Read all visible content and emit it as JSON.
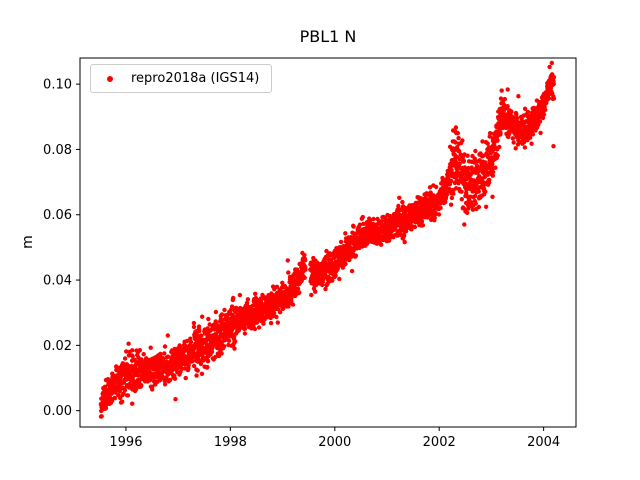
{
  "title": "PBL1 N",
  "legend": {
    "label": "repro2018a (IGS14)",
    "marker_color": "#ff0000"
  },
  "chart_data": {
    "type": "scatter",
    "title": "PBL1 N",
    "xlabel": "",
    "ylabel": "m",
    "xlim": [
      1995.12,
      2004.62
    ],
    "ylim": [
      -0.005,
      0.108
    ],
    "xticks": [
      1996,
      1998,
      2000,
      2002,
      2004
    ],
    "yticks": [
      0.0,
      0.02,
      0.04,
      0.06,
      0.08,
      0.1
    ],
    "grid": false,
    "legend_position": "upper-left",
    "marker_color": "#ff0000",
    "series": [
      {
        "name": "repro2018a (IGS14)",
        "x_start": 1995.52,
        "x_end": 2004.2,
        "points_per_year": 365,
        "marker_radius": 2.2,
        "noise": 0.0022,
        "noise_segments": [
          {
            "range": [
              1995.9,
              1996.3
            ],
            "sigma": 0.0036
          },
          {
            "range": [
              1997.3,
              1998.1
            ],
            "sigma": 0.0034
          },
          {
            "range": [
              2002.2,
              2002.98
            ],
            "sigma": 0.0042
          },
          {
            "range": [
              2003.0,
              2003.3
            ],
            "sigma": 0.0032
          }
        ],
        "gaps": [
          [
            1999.44,
            1999.53
          ]
        ],
        "trend": [
          [
            1995.52,
            0.001
          ],
          [
            1995.62,
            0.004
          ],
          [
            1995.75,
            0.0075
          ],
          [
            1995.95,
            0.0095
          ],
          [
            1996.1,
            0.011
          ],
          [
            1996.35,
            0.0125
          ],
          [
            1996.6,
            0.013
          ],
          [
            1996.9,
            0.0145
          ],
          [
            1997.1,
            0.016
          ],
          [
            1997.35,
            0.019
          ],
          [
            1997.6,
            0.021
          ],
          [
            1997.85,
            0.0235
          ],
          [
            1998.0,
            0.026
          ],
          [
            1998.3,
            0.0285
          ],
          [
            1998.6,
            0.0305
          ],
          [
            1998.9,
            0.033
          ],
          [
            1999.1,
            0.036
          ],
          [
            1999.3,
            0.04
          ],
          [
            1999.42,
            0.0455
          ],
          [
            1999.55,
            0.0415
          ],
          [
            1999.75,
            0.042
          ],
          [
            1999.95,
            0.044
          ],
          [
            2000.15,
            0.048
          ],
          [
            2000.4,
            0.052
          ],
          [
            2000.6,
            0.0545
          ],
          [
            2000.9,
            0.055
          ],
          [
            2001.15,
            0.0565
          ],
          [
            2001.4,
            0.059
          ],
          [
            2001.7,
            0.0615
          ],
          [
            2001.95,
            0.0635
          ],
          [
            2002.15,
            0.068
          ],
          [
            2002.3,
            0.0755
          ],
          [
            2002.45,
            0.071
          ],
          [
            2002.6,
            0.069
          ],
          [
            2002.75,
            0.0715
          ],
          [
            2002.9,
            0.0745
          ],
          [
            2003.05,
            0.08
          ],
          [
            2003.2,
            0.0915
          ],
          [
            2003.3,
            0.089
          ],
          [
            2003.45,
            0.0865
          ],
          [
            2003.6,
            0.086
          ],
          [
            2003.75,
            0.0875
          ],
          [
            2003.9,
            0.09
          ],
          [
            2004.0,
            0.0935
          ],
          [
            2004.1,
            0.099
          ],
          [
            2004.17,
            0.1
          ]
        ],
        "outliers": [
          [
            1996.05,
            0.0205
          ],
          [
            1996.12,
            0.0185
          ],
          [
            1996.95,
            0.0035
          ],
          [
            2002.33,
            0.085
          ],
          [
            2002.48,
            0.057
          ],
          [
            2002.55,
            0.063
          ],
          [
            2003.02,
            0.0655
          ],
          [
            2004.19,
            0.081
          ]
        ]
      }
    ]
  }
}
